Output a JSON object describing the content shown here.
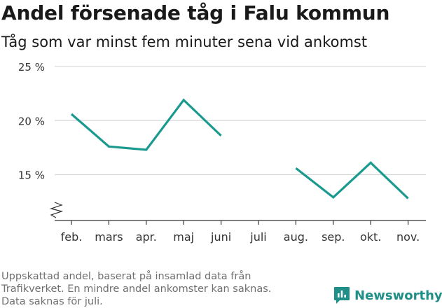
{
  "header": {
    "title": "Andel försenade tåg i Falu kommun",
    "subtitle": "Tåg som var minst fem minuter sena vid ankomst"
  },
  "footnote": {
    "lines": [
      "Uppskattad andel, baserat på insamlad data från",
      "Trafikverket. En mindre andel ankomster kan saknas.",
      "Data saknas för juli."
    ]
  },
  "brand": {
    "name": "Newsworthy",
    "icon": "newsworthy-logo-icon",
    "color": "#1f8f88"
  },
  "chart_data": {
    "type": "line",
    "title": "Andel försenade tåg i Falu kommun",
    "subtitle": "Tåg som var minst fem minuter sena vid ankomst",
    "categories": [
      "feb.",
      "mars",
      "apr.",
      "maj",
      "juni",
      "juli",
      "aug.",
      "sep.",
      "okt.",
      "nov."
    ],
    "series": [
      {
        "values": [
          20.6,
          17.6,
          17.3,
          21.9,
          18.6,
          null,
          15.6,
          12.9,
          16.1,
          12.8
        ],
        "color": "#1a9a8f"
      }
    ],
    "yticks": [
      15,
      20,
      25
    ],
    "ytick_labels": [
      "15 %",
      "20 %",
      "25 %"
    ],
    "ylim": [
      11.5,
      25
    ],
    "axis_break": true,
    "grid": true,
    "line_color": "#1a9a8f",
    "grid_color": "#d9d9d9",
    "axis_color": "#333333"
  }
}
